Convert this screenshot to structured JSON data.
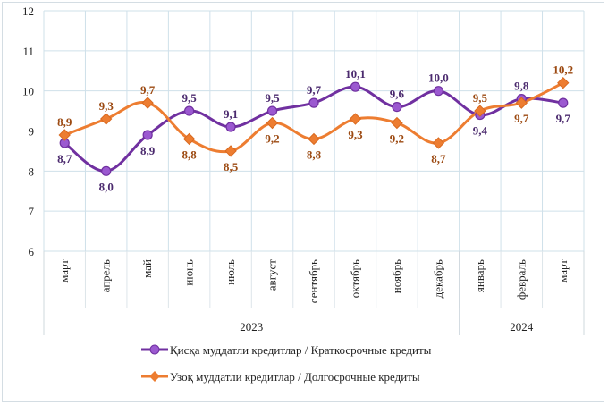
{
  "chart_data": {
    "type": "line",
    "categories": [
      "март",
      "апрель",
      "май",
      "июнь",
      "июль",
      "август",
      "сентябрь",
      "октябрь",
      "ноябрь",
      "декабрь",
      "январь",
      "февраль",
      "март"
    ],
    "year_groups": [
      {
        "label": "2023",
        "count": 10
      },
      {
        "label": "2024",
        "count": 3
      }
    ],
    "ylim": [
      6,
      12
    ],
    "yticks": [
      6,
      7,
      8,
      9,
      10,
      11,
      12
    ],
    "grid": true,
    "legend_position": "bottom",
    "series": [
      {
        "name": "Қисқа муддатли кредитлар  / Краткосрочные кредиты",
        "color": "#7030a0",
        "marker": "circle",
        "marker_fill": "#9b59d0",
        "values": [
          8.7,
          8.0,
          8.9,
          9.5,
          9.1,
          9.5,
          9.7,
          10.1,
          9.6,
          10.0,
          9.4,
          9.8,
          9.7
        ],
        "labels": [
          "8,7",
          "8,0",
          "8,9",
          "9,5",
          "9,1",
          "9,5",
          "9,7",
          "10,1",
          "9,6",
          "10,0",
          "9,4",
          "9,8",
          "9,7"
        ]
      },
      {
        "name": "Узоқ муддатли  кредитлар  / Долгосрочные кредиты",
        "color": "#ed7d31",
        "marker": "diamond",
        "marker_fill": "#ed7d31",
        "values": [
          8.9,
          9.3,
          9.7,
          8.8,
          8.5,
          9.2,
          8.8,
          9.3,
          9.2,
          8.7,
          9.5,
          9.7,
          10.2
        ],
        "labels": [
          "8,9",
          "9,3",
          "9,7",
          "8,8",
          "8,5",
          "9,2",
          "8,8",
          "9,3",
          "9,2",
          "8,7",
          "9,5",
          "9,7",
          "10,2"
        ]
      }
    ],
    "label_colors": {
      "short": "#4b2a6e",
      "long": "#9c4a12"
    }
  }
}
